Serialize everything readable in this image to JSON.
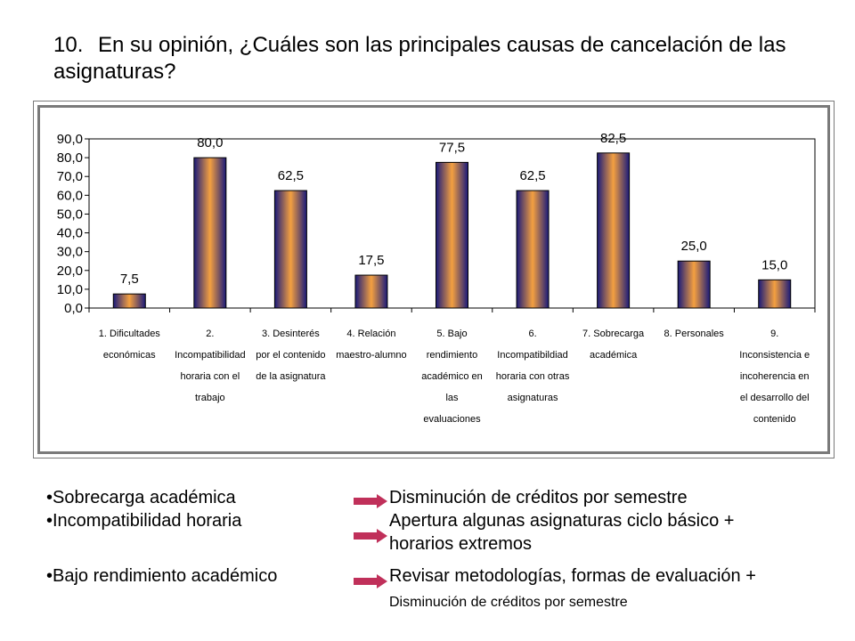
{
  "question": {
    "number": "10.",
    "text": "En su opinión, ¿Cuáles son las principales causas de cancelación de las asignaturas?"
  },
  "chart_data": {
    "type": "bar",
    "categories": [
      [
        "1. Dificultades",
        "económicas"
      ],
      [
        "2.",
        "Incompatibilidad",
        "horaria con el",
        "trabajo"
      ],
      [
        "3.  Desinterés",
        "por el contenido",
        "de la asignatura"
      ],
      [
        "4.  Relación",
        "maestro-alumno"
      ],
      [
        "5.  Bajo",
        "rendimiento",
        "académico en",
        "las",
        "evaluaciones"
      ],
      [
        "6.",
        "Incompatibildiad",
        "horaria con otras",
        "asignaturas"
      ],
      [
        "7.  Sobrecarga",
        "académica"
      ],
      [
        "8.  Personales"
      ],
      [
        "9.",
        "Inconsistencia e",
        "incoherencia en",
        "el desarrollo del",
        "contenido"
      ]
    ],
    "values": [
      7.5,
      80.0,
      62.5,
      17.5,
      77.5,
      62.5,
      82.5,
      25.0,
      15.0
    ],
    "value_labels": [
      "7,5",
      "80,0",
      "62,5",
      "17,5",
      "77,5",
      "62,5",
      "82,5",
      "25,0",
      "15,0"
    ],
    "ylim": [
      0,
      90
    ],
    "yticks": [
      "0,0",
      "10,0",
      "20,0",
      "30,0",
      "40,0",
      "50,0",
      "60,0",
      "70,0",
      "80,0",
      "90,0"
    ],
    "grid": false,
    "legend": "none",
    "colors": {
      "bar_dark": "#1a1a7a",
      "bar_light": "#f4a040",
      "axis": "#000000",
      "frame": "#7a7a7a"
    }
  },
  "bullets": [
    {
      "cause": "•Sobrecarga académica",
      "action": [
        "Disminución de créditos por semestre"
      ]
    },
    {
      "cause": "•Incompatibilidad horaria",
      "action": [
        "Apertura algunas asignaturas ciclo básico +",
        "horarios extremos"
      ]
    },
    {
      "cause": "•Bajo rendimiento académico",
      "action": [
        "Revisar metodologías, formas de evaluación +",
        "Disminución de créditos por semestre"
      ]
    }
  ],
  "arrow_color": "#c0305a"
}
